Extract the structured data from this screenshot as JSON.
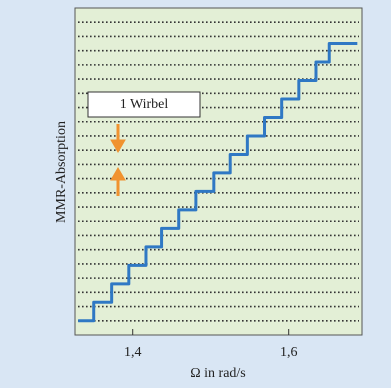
{
  "chart_data": {
    "type": "line",
    "xlabel": "Ω in rad/s",
    "ylabel": "MMR-Absorption",
    "annotation": "1 Wirbel",
    "xlim": [
      1.326,
      1.694
    ],
    "xticks": [
      {
        "value": 1.4,
        "label": "1,4"
      },
      {
        "value": 1.6,
        "label": "1,6"
      }
    ],
    "ylim": [
      0,
      23
    ],
    "grid": true,
    "series": [
      {
        "color": "#2f78c4",
        "x": [
          1.33,
          1.35,
          1.35,
          1.373,
          1.373,
          1.395,
          1.395,
          1.417,
          1.417,
          1.437,
          1.437,
          1.459,
          1.459,
          1.481,
          1.481,
          1.504,
          1.504,
          1.525,
          1.525,
          1.547,
          1.547,
          1.569,
          1.569,
          1.591,
          1.591,
          1.613,
          1.613,
          1.635,
          1.635,
          1.652,
          1.652,
          1.688
        ],
        "values": [
          1.0,
          1.0,
          2.3,
          2.3,
          3.6,
          3.6,
          4.9,
          4.9,
          6.2,
          6.2,
          7.5,
          7.5,
          8.8,
          8.8,
          10.1,
          10.1,
          11.4,
          11.4,
          12.7,
          12.7,
          14.0,
          14.0,
          15.3,
          15.3,
          16.6,
          16.6,
          17.9,
          17.9,
          19.2,
          19.2,
          20.5,
          20.5
        ]
      }
    ]
  }
}
